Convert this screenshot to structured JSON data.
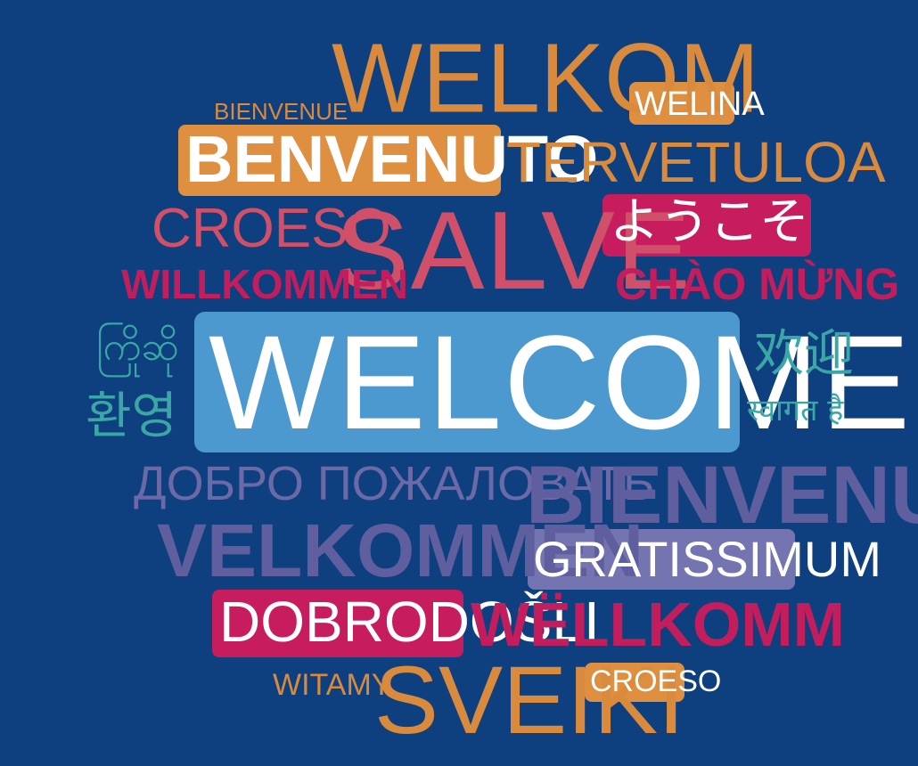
{
  "colors": {
    "background": "#0e3f7e",
    "orange": "#d98a3c",
    "orange_box": "#de9040",
    "magenta": "#c21d5c",
    "magenta_box": "#c71d5f",
    "pink_red": "#d0506a",
    "purple": "#5f5f9f",
    "purple_box": "#7474b0",
    "sky_box": "#4b99cf",
    "teal": "#3aa6a6",
    "white": "#ffffff"
  },
  "words": {
    "welkom": "WELKOM",
    "bienvenue_small": "BIENVENUE",
    "welina": "WELINA",
    "benvenuto": "BENVENUTO",
    "tervetuloa": "TERVETULOA",
    "croeso_top": "CROESO",
    "salve": "SALVE",
    "youkoso": "ようこそ",
    "willkommen": "WILLKOMMEN",
    "chao_mung": "CHÀO MỪNG",
    "burmese": "ကြိုဆို",
    "welcome": "WELCOME",
    "huanying": "欢迎",
    "hwanyeong": "환영",
    "swagat": "स्वागत है",
    "dobro_pozhalovat": "ДОБРО ПОЖАЛОВАТЬ",
    "bienvenue_large": "BIENVENUE",
    "velkommen": "VELKOMMEN",
    "gratissimum": "GRATISSIMUM",
    "dobrodosli": "DOBRODOŠLI",
    "wellkomm": "WËLLKOMM",
    "witamy": "WITAMY",
    "sveiki": "SVEIKI",
    "croeso_bottom": "CROESO"
  }
}
